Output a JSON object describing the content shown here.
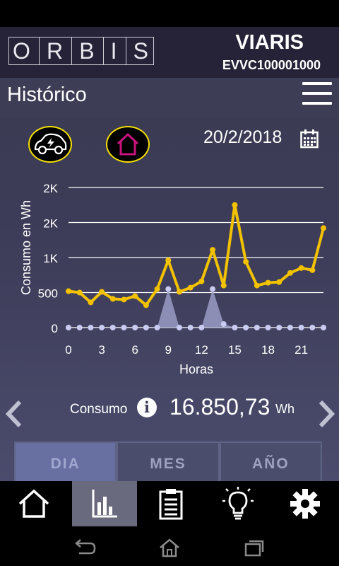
{
  "brand": {
    "logo_letters": [
      "O",
      "R",
      "B",
      "I",
      "S"
    ],
    "device_name": "VIARIS",
    "device_id": "EVVC100001000"
  },
  "header": {
    "title": "Histórico",
    "menu_icon": "hamburger-menu-icon"
  },
  "filters": {
    "car_icon": "electric-car-icon",
    "home_icon": "house-icon",
    "date": "20/2/2018",
    "calendar_icon": "calendar-icon"
  },
  "chart_data": {
    "type": "line",
    "ylabel": "Consumo en Wh",
    "xlabel": "Horas",
    "x": [
      0,
      1,
      2,
      3,
      4,
      5,
      6,
      7,
      8,
      9,
      10,
      11,
      12,
      13,
      14,
      15,
      16,
      17,
      18,
      19,
      20,
      21,
      22,
      23
    ],
    "xticks": [
      "0",
      "3",
      "6",
      "9",
      "12",
      "15",
      "18",
      "21"
    ],
    "yticks": [
      "0",
      "500",
      "1K",
      "2K",
      "2K"
    ],
    "ylim": [
      0,
      2000
    ],
    "series": [
      {
        "color": "#f2c200",
        "values": [
          520,
          500,
          360,
          510,
          410,
          400,
          450,
          320,
          550,
          960,
          510,
          570,
          660,
          1110,
          600,
          1750,
          940,
          600,
          640,
          650,
          780,
          850,
          820,
          1420
        ]
      },
      {
        "color": "#b6b9df",
        "values": [
          0,
          0,
          0,
          0,
          0,
          0,
          0,
          0,
          0,
          550,
          0,
          0,
          0,
          550,
          50,
          0,
          0,
          0,
          0,
          0,
          0,
          0,
          0,
          0
        ]
      }
    ],
    "grid": true
  },
  "summary": {
    "label": "Consumo",
    "value": "16.850,73",
    "unit": "Wh",
    "info_icon": "info-icon"
  },
  "navigation": {
    "prev_icon": "chevron-left-icon",
    "next_icon": "chevron-right-icon"
  },
  "tabs": [
    {
      "label": "DIA",
      "active": true
    },
    {
      "label": "MES",
      "active": false
    },
    {
      "label": "AÑO",
      "active": false
    }
  ],
  "bottom_nav": [
    "home-icon",
    "bar-chart-icon",
    "clipboard-icon",
    "lightbulb-icon",
    "gear-icon"
  ],
  "system_nav": [
    "back-icon",
    "home-outline-icon",
    "recent-apps-icon"
  ]
}
